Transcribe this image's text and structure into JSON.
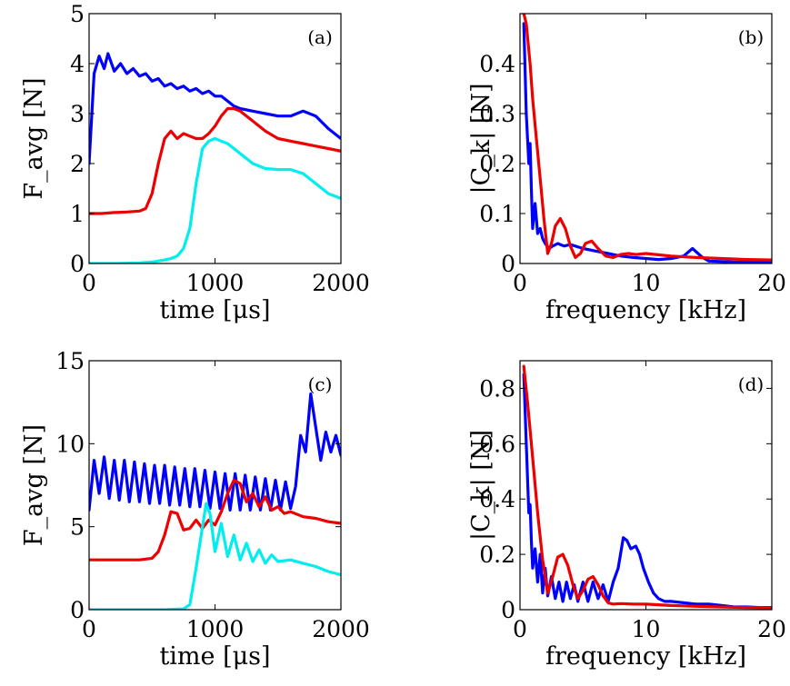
{
  "chart_data": [
    {
      "panel": "(a)",
      "type": "line",
      "xlabel": "time [μs]",
      "ylabel": "F_avg [N]",
      "xlim": [
        0,
        2000
      ],
      "ylim": [
        0,
        5
      ],
      "xticks": [
        0,
        1000,
        2000
      ],
      "yticks": [
        0,
        1,
        2,
        3,
        4,
        5
      ],
      "xtick_labels": [
        "0",
        "1000",
        "2000"
      ],
      "ytick_labels": [
        "0",
        "1",
        "2",
        "3",
        "4",
        "5"
      ],
      "grid": false,
      "series": [
        {
          "color": "#0000ff",
          "x": [
            0,
            40,
            80,
            120,
            150,
            200,
            250,
            300,
            350,
            400,
            450,
            500,
            550,
            600,
            650,
            700,
            750,
            800,
            850,
            900,
            950,
            1000,
            1050,
            1100,
            1150,
            1200,
            1300,
            1400,
            1500,
            1600,
            1700,
            1800,
            1900,
            2000
          ],
          "y": [
            2.0,
            3.8,
            4.15,
            3.9,
            4.2,
            3.85,
            4.0,
            3.8,
            3.9,
            3.75,
            3.8,
            3.65,
            3.7,
            3.55,
            3.6,
            3.5,
            3.55,
            3.45,
            3.5,
            3.4,
            3.45,
            3.35,
            3.35,
            3.25,
            3.15,
            3.1,
            3.05,
            3.0,
            2.95,
            2.95,
            3.05,
            2.95,
            2.7,
            2.5
          ]
        },
        {
          "color": "#ee0000",
          "x": [
            0,
            100,
            200,
            300,
            400,
            450,
            500,
            550,
            600,
            650,
            700,
            750,
            800,
            850,
            900,
            950,
            1000,
            1050,
            1100,
            1150,
            1200,
            1300,
            1400,
            1500,
            1600,
            1700,
            1800,
            1900,
            2000
          ],
          "y": [
            1.0,
            1.0,
            1.02,
            1.03,
            1.05,
            1.1,
            1.4,
            2.0,
            2.5,
            2.65,
            2.5,
            2.6,
            2.55,
            2.5,
            2.5,
            2.6,
            2.75,
            2.95,
            3.1,
            3.1,
            3.05,
            2.85,
            2.65,
            2.5,
            2.45,
            2.4,
            2.35,
            2.3,
            2.25
          ]
        },
        {
          "color": "#00eeee",
          "x": [
            0,
            200,
            400,
            500,
            600,
            650,
            700,
            750,
            800,
            850,
            900,
            950,
            1000,
            1050,
            1100,
            1150,
            1200,
            1300,
            1400,
            1500,
            1600,
            1700,
            1800,
            1900,
            2000
          ],
          "y": [
            0.0,
            0.0,
            0.01,
            0.03,
            0.07,
            0.1,
            0.15,
            0.3,
            0.7,
            1.6,
            2.3,
            2.45,
            2.5,
            2.45,
            2.4,
            2.3,
            2.2,
            2.0,
            1.9,
            1.88,
            1.88,
            1.8,
            1.6,
            1.4,
            1.3
          ]
        }
      ]
    },
    {
      "panel": "(b)",
      "type": "line",
      "xlabel": "frequency [kHz]",
      "ylabel": "|C_k| [N]",
      "xlim": [
        0,
        20
      ],
      "ylim": [
        0,
        0.5
      ],
      "xticks": [
        0,
        10,
        20
      ],
      "yticks": [
        0,
        0.1,
        0.2,
        0.3,
        0.4
      ],
      "xtick_labels": [
        "0",
        "10",
        "20"
      ],
      "ytick_labels": [
        "0",
        "0.1",
        "0.2",
        "0.3",
        "0.4"
      ],
      "grid": false,
      "series": [
        {
          "color": "#0000ff",
          "x": [
            0.3,
            0.5,
            0.7,
            0.8,
            0.9,
            1.0,
            1.2,
            1.4,
            1.6,
            1.8,
            2.0,
            2.3,
            2.6,
            3.0,
            3.5,
            4.0,
            5.0,
            6.0,
            7.0,
            8.0,
            9.0,
            10.0,
            11.0,
            12.0,
            13.0,
            13.7,
            14.5,
            15.0,
            16.0,
            17.0,
            18.0,
            19.0,
            20.0
          ],
          "y": [
            0.48,
            0.3,
            0.2,
            0.24,
            0.15,
            0.07,
            0.12,
            0.06,
            0.07,
            0.05,
            0.04,
            0.03,
            0.035,
            0.04,
            0.035,
            0.038,
            0.03,
            0.025,
            0.02,
            0.015,
            0.012,
            0.01,
            0.008,
            0.01,
            0.015,
            0.03,
            0.012,
            0.005,
            0.004,
            0.003,
            0.003,
            0.002,
            0.002
          ]
        },
        {
          "color": "#ee0000",
          "x": [
            0.3,
            0.5,
            0.8,
            1.0,
            1.3,
            1.6,
            1.9,
            2.2,
            2.5,
            2.8,
            3.2,
            3.6,
            4.0,
            4.4,
            4.8,
            5.2,
            5.7,
            6.2,
            6.8,
            7.4,
            8.0,
            8.6,
            9.2,
            10.0,
            12.0,
            14.0,
            16.0,
            18.0,
            20.0
          ],
          "y": [
            0.5,
            0.48,
            0.4,
            0.33,
            0.25,
            0.17,
            0.09,
            0.02,
            0.04,
            0.075,
            0.09,
            0.07,
            0.035,
            0.012,
            0.02,
            0.04,
            0.045,
            0.03,
            0.015,
            0.012,
            0.018,
            0.02,
            0.018,
            0.02,
            0.015,
            0.012,
            0.01,
            0.008,
            0.007
          ]
        }
      ]
    },
    {
      "panel": "(c)",
      "type": "line",
      "xlabel": "time [μs]",
      "ylabel": "F_avg [N]",
      "xlim": [
        0,
        2000
      ],
      "ylim": [
        0,
        15
      ],
      "xticks": [
        0,
        1000,
        2000
      ],
      "yticks": [
        0,
        5,
        10,
        15
      ],
      "xtick_labels": [
        "0",
        "1000",
        "2000"
      ],
      "ytick_labels": [
        "0",
        "5",
        "10",
        "15"
      ],
      "grid": false,
      "series": [
        {
          "color": "#0000ff",
          "x": [
            0,
            40,
            80,
            120,
            160,
            200,
            240,
            280,
            320,
            360,
            400,
            440,
            480,
            520,
            560,
            600,
            640,
            680,
            720,
            760,
            800,
            840,
            880,
            920,
            960,
            1000,
            1040,
            1080,
            1120,
            1160,
            1200,
            1240,
            1280,
            1320,
            1360,
            1400,
            1440,
            1480,
            1520,
            1560,
            1600,
            1640,
            1680,
            1720,
            1760,
            1800,
            1840,
            1880,
            1920,
            1960,
            2000
          ],
          "y": [
            6.0,
            9.0,
            7.0,
            9.2,
            6.7,
            9.0,
            6.6,
            9.0,
            6.5,
            8.9,
            6.5,
            8.8,
            6.4,
            8.7,
            6.4,
            8.7,
            6.3,
            8.6,
            6.3,
            8.5,
            6.2,
            8.5,
            6.2,
            8.4,
            6.1,
            8.3,
            6.1,
            8.2,
            6.0,
            8.2,
            6.0,
            8.1,
            6.0,
            8.0,
            6.0,
            7.9,
            6.0,
            7.8,
            6.0,
            7.7,
            6.1,
            7.4,
            10.5,
            9.5,
            13.0,
            11.0,
            9.0,
            10.7,
            9.5,
            10.5,
            9.3
          ]
        },
        {
          "color": "#ee0000",
          "x": [
            0,
            200,
            400,
            500,
            550,
            600,
            650,
            700,
            750,
            800,
            850,
            900,
            950,
            1000,
            1050,
            1100,
            1150,
            1200,
            1250,
            1300,
            1350,
            1400,
            1450,
            1500,
            1550,
            1600,
            1700,
            1800,
            1900,
            2000
          ],
          "y": [
            3.0,
            3.0,
            3.0,
            3.1,
            3.5,
            4.5,
            5.9,
            5.8,
            4.8,
            4.9,
            5.4,
            4.9,
            5.4,
            5.1,
            5.9,
            7.0,
            7.8,
            7.6,
            6.5,
            7.0,
            6.2,
            6.8,
            6.0,
            6.2,
            5.8,
            5.9,
            5.6,
            5.5,
            5.3,
            5.2
          ]
        },
        {
          "color": "#00eeee",
          "x": [
            0,
            300,
            600,
            750,
            800,
            850,
            900,
            930,
            960,
            1000,
            1050,
            1100,
            1150,
            1200,
            1250,
            1300,
            1350,
            1400,
            1450,
            1500,
            1600,
            1700,
            1800,
            1900,
            2000
          ],
          "y": [
            0.0,
            0.0,
            0.0,
            0.05,
            0.3,
            2.5,
            5.0,
            6.4,
            5.8,
            3.5,
            5.2,
            3.2,
            4.5,
            3.0,
            4.0,
            2.9,
            3.6,
            2.8,
            3.3,
            2.9,
            3.0,
            2.8,
            2.6,
            2.3,
            2.1
          ]
        }
      ]
    },
    {
      "panel": "(d)",
      "type": "line",
      "xlabel": "frequency [kHz]",
      "ylabel": "|C_k| [N]",
      "xlim": [
        0,
        20
      ],
      "ylim": [
        0,
        0.9
      ],
      "xticks": [
        0,
        10,
        20
      ],
      "yticks": [
        0,
        0.2,
        0.4,
        0.6,
        0.8
      ],
      "xtick_labels": [
        "0",
        "10",
        "20"
      ],
      "ytick_labels": [
        "0",
        "0.2",
        "0.4",
        "0.6",
        "0.8"
      ],
      "grid": false,
      "series": [
        {
          "color": "#0000ff",
          "x": [
            0.3,
            0.5,
            0.7,
            0.8,
            0.9,
            1.0,
            1.2,
            1.4,
            1.6,
            1.8,
            2.0,
            2.2,
            2.5,
            2.8,
            3.1,
            3.4,
            3.7,
            4.0,
            4.3,
            4.6,
            5.0,
            5.4,
            5.8,
            6.2,
            6.6,
            7.0,
            7.4,
            7.8,
            8.2,
            8.5,
            8.8,
            9.2,
            9.5,
            9.8,
            10.2,
            10.6,
            11.0,
            11.5,
            12.0,
            13.0,
            14.0,
            15.0,
            16.0,
            17.0,
            18.0,
            19.0,
            20.0
          ],
          "y": [
            0.85,
            0.6,
            0.35,
            0.38,
            0.25,
            0.15,
            0.22,
            0.1,
            0.2,
            0.06,
            0.15,
            0.05,
            0.12,
            0.04,
            0.1,
            0.03,
            0.1,
            0.04,
            0.09,
            0.03,
            0.1,
            0.03,
            0.1,
            0.04,
            0.09,
            0.03,
            0.1,
            0.15,
            0.26,
            0.25,
            0.22,
            0.23,
            0.2,
            0.15,
            0.1,
            0.06,
            0.04,
            0.03,
            0.03,
            0.025,
            0.02,
            0.02,
            0.015,
            0.01,
            0.01,
            0.008,
            0.008
          ]
        },
        {
          "color": "#ee0000",
          "x": [
            0.3,
            0.6,
            1.0,
            1.4,
            1.8,
            2.2,
            2.6,
            3.0,
            3.4,
            3.8,
            4.2,
            4.6,
            5.0,
            5.4,
            5.8,
            6.2,
            6.6,
            7.0,
            7.4,
            8.0,
            9.0,
            10.0,
            12.0,
            14.0,
            16.0,
            18.0,
            20.0
          ],
          "y": [
            0.88,
            0.75,
            0.55,
            0.35,
            0.18,
            0.06,
            0.12,
            0.19,
            0.2,
            0.16,
            0.09,
            0.04,
            0.07,
            0.11,
            0.12,
            0.09,
            0.05,
            0.025,
            0.02,
            0.022,
            0.02,
            0.02,
            0.015,
            0.012,
            0.01,
            0.008,
            0.007
          ]
        }
      ]
    }
  ]
}
